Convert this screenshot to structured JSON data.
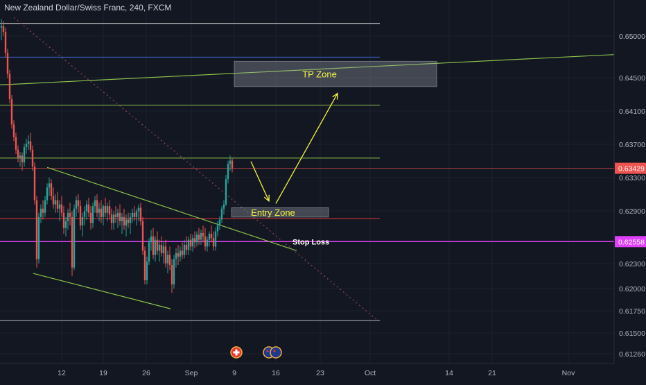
{
  "symbol_title": "New Zealand Dollar/Swiss Franc, 240, FXCM",
  "colors": {
    "background": "#131722",
    "grid": "#1e222d",
    "axis_text": "#b2b5be",
    "candle_up": "#26a69a",
    "candle_down": "#ef5350",
    "white_line": "#e6e6e6",
    "blue_line": "#3a6fd8",
    "green_line": "#8bc34a",
    "red_line": "#e53935",
    "magenta_line": "#e040fb",
    "yellow": "#f5f542",
    "zone": "#9aa0a8",
    "current_price_tag": "#ef5350",
    "stop_loss_tag": "#e040fb"
  },
  "chart_data": {
    "type": "candlestick",
    "y_axis": {
      "ticks": [
        "0.65000",
        "0.64500",
        "0.64100",
        "0.63700",
        "0.63300",
        "0.62900",
        "0.62300",
        "0.62000",
        "0.61750",
        "0.61500",
        "0.61260"
      ],
      "range": [
        0.6108,
        0.6524
      ]
    },
    "x_axis": {
      "ticks": [
        "12",
        "19",
        "26",
        "Sep",
        "9",
        "16",
        "23",
        "Oct",
        "14",
        "21",
        "Nov"
      ]
    },
    "price_tags": [
      {
        "name": "current-price",
        "value": "0.63429"
      },
      {
        "name": "stop-loss-price",
        "value": "0.62558"
      }
    ],
    "horizontal_levels": [
      {
        "name": "white-level",
        "price": 0.6515,
        "color_key": "white_line"
      },
      {
        "name": "blue-level",
        "price": 0.6475,
        "color_key": "blue_line"
      },
      {
        "name": "green-level-upper",
        "price": 0.6418,
        "color_key": "green_line"
      },
      {
        "name": "green-level-mid",
        "price": 0.6355,
        "color_key": "green_line"
      },
      {
        "name": "red-level-current",
        "price": 0.63429,
        "color_key": "current_price_tag"
      },
      {
        "name": "red-level-entry",
        "price": 0.6283,
        "color_key": "red_line"
      },
      {
        "name": "stop-loss-level",
        "price": 0.62558,
        "color_key": "magenta_line"
      },
      {
        "name": "grey-level-bottom",
        "price": 0.6162,
        "color_key": "axis_text"
      }
    ],
    "trend_lines": [
      {
        "name": "long-green-trendline",
        "from": [
          0,
          0.6442
        ],
        "to": [
          886,
          0.6478
        ]
      },
      {
        "name": "channel-upper-line",
        "from": [
          68,
          0.6344
        ],
        "to": [
          428,
          0.6245
        ]
      },
      {
        "name": "channel-lower-line",
        "from": [
          48,
          0.6218
        ],
        "to": [
          246,
          0.6176
        ]
      },
      {
        "name": "dotted-diagonal",
        "from": [
          20,
          0.6522
        ],
        "to": [
          545,
          0.6162
        ]
      }
    ],
    "zones": [
      {
        "name": "tp-zone",
        "label": "TP Zone",
        "x0": 338,
        "x1": 630,
        "top": 0.647,
        "bottom": 0.644
      },
      {
        "name": "entry-zone",
        "label": "Entry Zone",
        "x0": 334,
        "x1": 474,
        "top": 0.6296,
        "bottom": 0.6285
      }
    ],
    "annotations": [
      {
        "name": "stop-loss-label",
        "text": "Stop Loss"
      }
    ],
    "projection_arrows": [
      {
        "name": "arrow-down",
        "from": [
          362,
          0.6351
        ],
        "to": [
          388,
          0.6304
        ]
      },
      {
        "name": "arrow-up",
        "from": [
          398,
          0.6301
        ],
        "to": [
          487,
          0.6432
        ]
      }
    ],
    "candles": [
      [
        2,
        0.651,
        0.652,
        0.6495,
        0.6512
      ],
      [
        5,
        0.6512,
        0.6518,
        0.65,
        0.6505
      ],
      [
        8,
        0.6505,
        0.651,
        0.6475,
        0.648
      ],
      [
        11,
        0.648,
        0.6485,
        0.645,
        0.6455
      ],
      [
        14,
        0.6455,
        0.646,
        0.642,
        0.6425
      ],
      [
        17,
        0.6425,
        0.643,
        0.639,
        0.6395
      ],
      [
        20,
        0.6395,
        0.64,
        0.6375,
        0.638
      ],
      [
        23,
        0.638,
        0.6385,
        0.636,
        0.6365
      ],
      [
        26,
        0.6365,
        0.637,
        0.635,
        0.6355
      ],
      [
        29,
        0.6355,
        0.6362,
        0.6345,
        0.6358
      ],
      [
        32,
        0.6358,
        0.6362,
        0.634,
        0.635
      ],
      [
        35,
        0.635,
        0.6372,
        0.6345,
        0.6368
      ],
      [
        38,
        0.6368,
        0.6378,
        0.636,
        0.6372
      ],
      [
        41,
        0.6372,
        0.6382,
        0.6365,
        0.6375
      ],
      [
        44,
        0.6375,
        0.6385,
        0.6362,
        0.6365
      ],
      [
        47,
        0.6365,
        0.637,
        0.634,
        0.6345
      ],
      [
        50,
        0.6345,
        0.635,
        0.63,
        0.6305
      ],
      [
        53,
        0.6305,
        0.631,
        0.6225,
        0.6235
      ],
      [
        56,
        0.6235,
        0.629,
        0.623,
        0.6285
      ],
      [
        59,
        0.6285,
        0.63,
        0.6278,
        0.6295
      ],
      [
        62,
        0.6295,
        0.6305,
        0.6282,
        0.629
      ],
      [
        65,
        0.629,
        0.631,
        0.6285,
        0.6305
      ],
      [
        68,
        0.6305,
        0.6325,
        0.63,
        0.632
      ],
      [
        71,
        0.632,
        0.6332,
        0.631,
        0.6325
      ],
      [
        74,
        0.6325,
        0.633,
        0.6305,
        0.631
      ],
      [
        77,
        0.631,
        0.632,
        0.6295,
        0.63
      ],
      [
        80,
        0.63,
        0.6312,
        0.629,
        0.6305
      ],
      [
        83,
        0.6305,
        0.6315,
        0.629,
        0.6295
      ],
      [
        86,
        0.6295,
        0.6305,
        0.628,
        0.63
      ],
      [
        89,
        0.63,
        0.631,
        0.6285,
        0.629
      ],
      [
        92,
        0.629,
        0.6298,
        0.6265,
        0.6272
      ],
      [
        95,
        0.6272,
        0.6285,
        0.6262,
        0.628
      ],
      [
        98,
        0.628,
        0.6295,
        0.627,
        0.629
      ],
      [
        101,
        0.629,
        0.6302,
        0.6275,
        0.6285
      ],
      [
        104,
        0.6285,
        0.6292,
        0.6215,
        0.6225
      ],
      [
        107,
        0.6225,
        0.63,
        0.6222,
        0.6295
      ],
      [
        110,
        0.6295,
        0.631,
        0.6285,
        0.6305
      ],
      [
        113,
        0.6305,
        0.6312,
        0.629,
        0.6298
      ],
      [
        116,
        0.6298,
        0.6305,
        0.627,
        0.6275
      ],
      [
        119,
        0.6275,
        0.629,
        0.6262,
        0.6285
      ],
      [
        122,
        0.6285,
        0.6298,
        0.6275,
        0.6292
      ],
      [
        125,
        0.6292,
        0.6305,
        0.6282,
        0.63
      ],
      [
        128,
        0.63,
        0.6308,
        0.6285,
        0.629
      ],
      [
        131,
        0.629,
        0.6298,
        0.627,
        0.6278
      ],
      [
        134,
        0.6278,
        0.6302,
        0.6272,
        0.6298
      ],
      [
        137,
        0.6298,
        0.631,
        0.629,
        0.6305
      ],
      [
        140,
        0.6305,
        0.6312,
        0.6285,
        0.629
      ],
      [
        143,
        0.629,
        0.6302,
        0.628,
        0.6295
      ],
      [
        146,
        0.6295,
        0.6305,
        0.6278,
        0.6285
      ],
      [
        149,
        0.6285,
        0.63,
        0.6275,
        0.6298
      ],
      [
        152,
        0.6298,
        0.6308,
        0.6285,
        0.629
      ],
      [
        155,
        0.629,
        0.6302,
        0.628,
        0.6298
      ],
      [
        158,
        0.6298,
        0.6305,
        0.6282,
        0.6288
      ],
      [
        161,
        0.6288,
        0.6295,
        0.627,
        0.6278
      ],
      [
        164,
        0.6278,
        0.6292,
        0.627,
        0.6288
      ],
      [
        167,
        0.6288,
        0.6298,
        0.6278,
        0.6285
      ],
      [
        170,
        0.6285,
        0.6295,
        0.6272,
        0.629
      ],
      [
        173,
        0.629,
        0.63,
        0.6275,
        0.628
      ],
      [
        176,
        0.628,
        0.629,
        0.6265,
        0.6285
      ],
      [
        179,
        0.6285,
        0.6295,
        0.627,
        0.6275
      ],
      [
        182,
        0.6275,
        0.6288,
        0.6262,
        0.6282
      ],
      [
        185,
        0.6282,
        0.629,
        0.6272,
        0.6278
      ],
      [
        188,
        0.6278,
        0.629,
        0.6265,
        0.6285
      ],
      [
        191,
        0.6285,
        0.6295,
        0.6278,
        0.629
      ],
      [
        194,
        0.629,
        0.6298,
        0.628,
        0.6285
      ],
      [
        197,
        0.6285,
        0.6295,
        0.6275,
        0.6292
      ],
      [
        200,
        0.6292,
        0.63,
        0.628,
        0.6296
      ],
      [
        203,
        0.6296,
        0.6302,
        0.6275,
        0.628
      ],
      [
        206,
        0.628,
        0.6285,
        0.624,
        0.6245
      ],
      [
        209,
        0.6245,
        0.625,
        0.6205,
        0.621
      ],
      [
        212,
        0.621,
        0.6238,
        0.6205,
        0.6232
      ],
      [
        215,
        0.6232,
        0.626,
        0.6228,
        0.6255
      ],
      [
        218,
        0.6255,
        0.627,
        0.6245,
        0.6262
      ],
      [
        221,
        0.6262,
        0.6272,
        0.6235,
        0.624
      ],
      [
        224,
        0.624,
        0.6262,
        0.6232,
        0.6258
      ],
      [
        227,
        0.6258,
        0.6268,
        0.624,
        0.6245
      ],
      [
        230,
        0.6245,
        0.6258,
        0.6232,
        0.6252
      ],
      [
        233,
        0.6252,
        0.6262,
        0.6238,
        0.6242
      ],
      [
        236,
        0.6242,
        0.6255,
        0.623,
        0.625
      ],
      [
        239,
        0.625,
        0.6258,
        0.6225,
        0.623
      ],
      [
        242,
        0.623,
        0.6245,
        0.6218,
        0.624
      ],
      [
        245,
        0.624,
        0.625,
        0.6222,
        0.6228
      ],
      [
        248,
        0.6228,
        0.6235,
        0.6195,
        0.6205
      ],
      [
        251,
        0.6205,
        0.624,
        0.62,
        0.6235
      ],
      [
        254,
        0.6235,
        0.6248,
        0.6225,
        0.6242
      ],
      [
        257,
        0.6242,
        0.6252,
        0.6228,
        0.6238
      ],
      [
        260,
        0.6238,
        0.625,
        0.6232,
        0.6245
      ],
      [
        263,
        0.6245,
        0.6255,
        0.6235,
        0.624
      ],
      [
        266,
        0.624,
        0.6258,
        0.6236,
        0.6252
      ],
      [
        269,
        0.6252,
        0.6262,
        0.624,
        0.6246
      ],
      [
        272,
        0.6246,
        0.6262,
        0.624,
        0.6258
      ],
      [
        275,
        0.6258,
        0.6265,
        0.6245,
        0.625
      ],
      [
        278,
        0.625,
        0.6264,
        0.6244,
        0.626
      ],
      [
        281,
        0.626,
        0.6268,
        0.6248,
        0.6255
      ],
      [
        284,
        0.6255,
        0.6268,
        0.625,
        0.6264
      ],
      [
        287,
        0.6264,
        0.6272,
        0.6252,
        0.6258
      ],
      [
        290,
        0.6258,
        0.627,
        0.6252,
        0.6266
      ],
      [
        293,
        0.6266,
        0.6275,
        0.6255,
        0.6262
      ],
      [
        296,
        0.6262,
        0.6272,
        0.6245,
        0.625
      ],
      [
        299,
        0.625,
        0.6262,
        0.6244,
        0.6258
      ],
      [
        302,
        0.6258,
        0.6268,
        0.625,
        0.6265
      ],
      [
        305,
        0.6265,
        0.6275,
        0.6255,
        0.626
      ],
      [
        308,
        0.626,
        0.6268,
        0.6245,
        0.625
      ],
      [
        311,
        0.625,
        0.6272,
        0.6245,
        0.6268
      ],
      [
        314,
        0.6268,
        0.628,
        0.6262,
        0.6275
      ],
      [
        317,
        0.6275,
        0.6286,
        0.627,
        0.6282
      ],
      [
        320,
        0.6282,
        0.6298,
        0.6278,
        0.6295
      ],
      [
        323,
        0.6295,
        0.6305,
        0.6288,
        0.63
      ],
      [
        326,
        0.63,
        0.6335,
        0.6298,
        0.633
      ],
      [
        329,
        0.633,
        0.6352,
        0.6325,
        0.6348
      ],
      [
        332,
        0.6348,
        0.6358,
        0.634,
        0.6352
      ],
      [
        335,
        0.6352,
        0.6355,
        0.6338,
        0.6343
      ]
    ]
  }
}
